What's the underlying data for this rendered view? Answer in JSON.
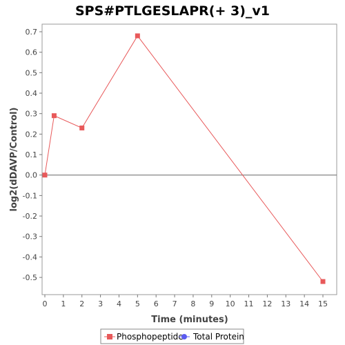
{
  "chart_data": {
    "type": "line",
    "title": "SPS#PTLGESLAPR(+ 3)_v1",
    "xlabel": "Time (minutes)",
    "ylabel": "log2(dDAVP/Control)",
    "xlim": [
      0,
      16
    ],
    "ylim": [
      -0.58,
      0.74
    ],
    "x_ticks": [
      "0",
      "1",
      "2",
      "3",
      "4",
      "5",
      "6",
      "7",
      "8",
      "9",
      "10",
      "11",
      "12",
      "13",
      "14",
      "15"
    ],
    "y_ticks": [
      "0.7",
      "0.6",
      "0.5",
      "0.4",
      "0.3",
      "0.2",
      "0.1",
      "0.0",
      "-0.1",
      "-0.2",
      "-0.3",
      "-0.4",
      "-0.5"
    ],
    "x_tick_values": [
      0,
      1,
      2,
      3,
      4,
      5,
      6,
      7,
      8,
      9,
      10,
      11,
      12,
      13,
      14,
      15
    ],
    "y_tick_values": [
      0.7,
      0.6,
      0.5,
      0.4,
      0.3,
      0.2,
      0.1,
      0.0,
      -0.1,
      -0.2,
      -0.3,
      -0.4,
      -0.5
    ],
    "zero_line": true,
    "grid": false,
    "series": [
      {
        "name": "Phosphopeptide",
        "color": "#e8595a",
        "marker": "square",
        "x": [
          0,
          0.5,
          2,
          5,
          15
        ],
        "y": [
          0.0,
          0.29,
          0.23,
          0.68,
          -0.52
        ]
      },
      {
        "name": "Total Protein",
        "color": "#5b5bf0",
        "marker": "circle",
        "x": [],
        "y": []
      }
    ],
    "legend_position": "bottom"
  }
}
